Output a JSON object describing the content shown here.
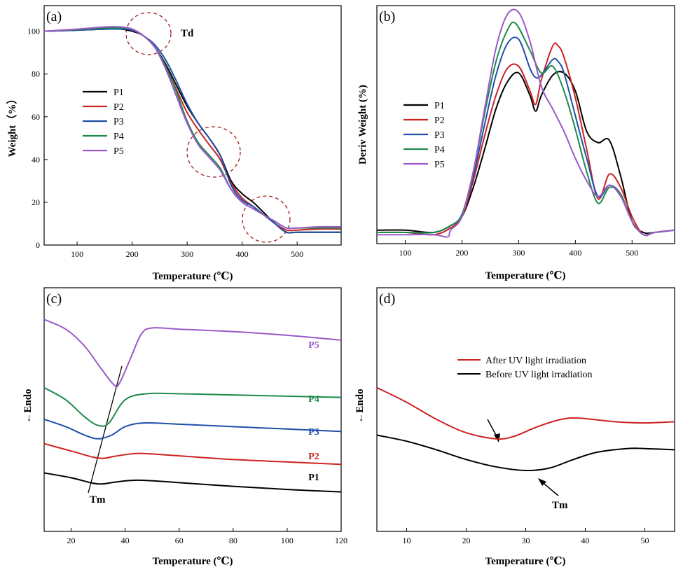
{
  "chart_data": [
    {
      "panel": "(a)",
      "type": "line",
      "xlabel": "Temperature (℃)",
      "ylabel": "Weight（%）",
      "xlim": [
        40,
        580
      ],
      "ylim": [
        0,
        112
      ],
      "xticks": [
        100,
        200,
        300,
        400,
        500
      ],
      "yticks": [
        0,
        20,
        40,
        60,
        80,
        100
      ],
      "legend_position": "center-left",
      "annotations": [
        "Td"
      ],
      "series": [
        {
          "name": "P1",
          "color": "#000000",
          "x": [
            40,
            100,
            150,
            180,
            200,
            220,
            240,
            260,
            280,
            300,
            320,
            340,
            360,
            380,
            400,
            420,
            440,
            460,
            480,
            500,
            540,
            580
          ],
          "y": [
            100,
            100.5,
            101,
            101,
            100,
            98,
            93,
            85,
            75,
            65,
            57,
            50,
            42,
            30,
            24,
            20,
            15,
            10,
            6,
            6,
            6,
            6
          ]
        },
        {
          "name": "P2",
          "color": "#cc2222",
          "x": [
            40,
            100,
            150,
            180,
            200,
            220,
            240,
            260,
            280,
            300,
            320,
            340,
            360,
            380,
            400,
            420,
            440,
            460,
            480,
            500,
            540,
            580
          ],
          "y": [
            100,
            100.8,
            101.5,
            101.5,
            100.5,
            98,
            93,
            84,
            73,
            62,
            54,
            47,
            40,
            29,
            22,
            18,
            14,
            10,
            7,
            7,
            7.5,
            7.5
          ]
        },
        {
          "name": "P3",
          "color": "#1f4fa8",
          "x": [
            40,
            100,
            150,
            180,
            200,
            220,
            240,
            260,
            280,
            300,
            320,
            340,
            360,
            380,
            400,
            420,
            440,
            460,
            480,
            500,
            540,
            580
          ],
          "y": [
            100,
            100.5,
            101,
            101,
            100.5,
            98,
            94,
            87,
            77,
            66,
            57,
            50,
            42,
            28,
            21,
            18,
            14,
            10,
            6,
            6,
            6,
            6
          ]
        },
        {
          "name": "P4",
          "color": "#1e8a4a",
          "x": [
            40,
            100,
            150,
            180,
            200,
            220,
            240,
            260,
            280,
            300,
            320,
            340,
            360,
            380,
            400,
            420,
            440,
            460,
            480,
            500,
            540,
            580
          ],
          "y": [
            100,
            100.8,
            101.5,
            101.5,
            101,
            98,
            93,
            84,
            72,
            58,
            48,
            42,
            36,
            26,
            20,
            17,
            14,
            11,
            8,
            8,
            8,
            8
          ]
        },
        {
          "name": "P5",
          "color": "#9b59c9",
          "x": [
            40,
            100,
            150,
            180,
            200,
            220,
            240,
            260,
            280,
            300,
            320,
            340,
            360,
            380,
            400,
            420,
            440,
            460,
            480,
            500,
            540,
            580
          ],
          "y": [
            100,
            101,
            102,
            102,
            101,
            98,
            93,
            83,
            70,
            57,
            47,
            41,
            35,
            26,
            20,
            17,
            14,
            11,
            8,
            8,
            8.5,
            8.5
          ]
        }
      ]
    },
    {
      "panel": "(b)",
      "type": "line",
      "xlabel": "Temperature (℃)",
      "ylabel": "Deriv Weight (%)",
      "xlim": [
        50,
        575
      ],
      "ylim": [
        0,
        10.6
      ],
      "xticks": [
        100,
        200,
        300,
        400,
        500
      ],
      "yticks": [],
      "legend_position": "center-left",
      "series": [
        {
          "name": "P1",
          "color": "#000000",
          "x": [
            50,
            100,
            150,
            180,
            200,
            220,
            240,
            260,
            280,
            300,
            320,
            330,
            340,
            360,
            380,
            400,
            420,
            440,
            460,
            480,
            500,
            520,
            540,
            575
          ],
          "y": [
            0.6,
            0.6,
            0.5,
            0.8,
            1.2,
            2.5,
            4.2,
            6.0,
            7.2,
            7.6,
            6.6,
            5.9,
            6.6,
            7.5,
            7.6,
            6.8,
            5.0,
            4.5,
            4.6,
            3.0,
            1.0,
            0.5,
            0.5,
            0.6
          ]
        },
        {
          "name": "P2",
          "color": "#cc2222",
          "x": [
            50,
            100,
            150,
            180,
            200,
            220,
            240,
            260,
            280,
            300,
            320,
            330,
            340,
            360,
            370,
            380,
            400,
            420,
            440,
            460,
            480,
            500,
            520,
            540,
            575
          ],
          "y": [
            0.5,
            0.5,
            0.4,
            0.7,
            1.2,
            2.8,
            4.8,
            6.6,
            7.8,
            7.9,
            6.8,
            6.2,
            7.3,
            8.8,
            8.8,
            8.3,
            6.5,
            4.2,
            2.0,
            3.1,
            2.5,
            1.2,
            0.4,
            0.5,
            0.6
          ]
        },
        {
          "name": "P3",
          "color": "#1f4fa8",
          "x": [
            50,
            100,
            150,
            180,
            200,
            220,
            240,
            260,
            280,
            300,
            320,
            330,
            340,
            360,
            370,
            380,
            400,
            420,
            440,
            460,
            480,
            500,
            520,
            540,
            575
          ],
          "y": [
            0.5,
            0.5,
            0.5,
            0.8,
            1.3,
            3.0,
            5.3,
            7.5,
            8.9,
            9.1,
            7.8,
            7.4,
            7.5,
            8.2,
            8.1,
            7.6,
            5.7,
            3.8,
            2.1,
            2.6,
            2.2,
            1.0,
            0.4,
            0.5,
            0.6
          ]
        },
        {
          "name": "P4",
          "color": "#1e8a4a",
          "x": [
            50,
            100,
            150,
            180,
            200,
            220,
            240,
            260,
            280,
            295,
            320,
            340,
            360,
            380,
            400,
            420,
            440,
            460,
            480,
            500,
            520,
            540,
            575
          ],
          "y": [
            0.5,
            0.5,
            0.5,
            0.8,
            1.3,
            3.2,
            5.8,
            8.1,
            9.5,
            9.8,
            8.6,
            7.6,
            7.9,
            6.8,
            5.1,
            3.2,
            1.8,
            2.5,
            2.2,
            1.0,
            0.4,
            0.5,
            0.6
          ]
        },
        {
          "name": "P5",
          "color": "#9b59c9",
          "x": [
            50,
            100,
            150,
            175,
            180,
            200,
            220,
            240,
            260,
            280,
            300,
            320,
            340,
            360,
            380,
            400,
            420,
            440,
            460,
            480,
            500,
            520,
            540,
            575
          ],
          "y": [
            0.4,
            0.4,
            0.4,
            0.3,
            0.6,
            1.2,
            3.2,
            6.0,
            8.7,
            10.2,
            10.3,
            9.0,
            7.0,
            6.0,
            5.0,
            3.8,
            2.8,
            2.1,
            2.6,
            2.1,
            1.0,
            0.4,
            0.5,
            0.6
          ]
        }
      ]
    },
    {
      "panel": "(c)",
      "type": "line",
      "xlabel": "Temperature (℃)",
      "ylabel": "←Endo",
      "xlim": [
        10,
        120
      ],
      "ylim": [
        0,
        10
      ],
      "xticks": [
        20,
        40,
        60,
        80,
        100,
        120
      ],
      "yticks": [],
      "annotations": [
        "Tm"
      ],
      "series": [
        {
          "name": "P1",
          "color": "#000000",
          "x": [
            10,
            20,
            28,
            32,
            36,
            45,
            60,
            80,
            100,
            120
          ],
          "y": [
            2.4,
            2.2,
            1.98,
            1.95,
            2.02,
            2.1,
            2.0,
            1.85,
            1.72,
            1.62
          ]
        },
        {
          "name": "P2",
          "color": "#cc2222",
          "x": [
            10,
            20,
            28,
            32,
            36,
            45,
            60,
            80,
            100,
            120
          ],
          "y": [
            3.6,
            3.3,
            3.05,
            3.0,
            3.08,
            3.2,
            3.1,
            2.95,
            2.85,
            2.75
          ]
        },
        {
          "name": "P3",
          "color": "#1f4fa8",
          "x": [
            10,
            18,
            25,
            30,
            35,
            40,
            47,
            60,
            80,
            100,
            120
          ],
          "y": [
            4.6,
            4.3,
            3.95,
            3.8,
            3.95,
            4.3,
            4.45,
            4.4,
            4.3,
            4.2,
            4.1
          ]
        },
        {
          "name": "P4",
          "color": "#1e8a4a",
          "x": [
            10,
            18,
            25,
            30,
            34,
            40,
            48,
            60,
            80,
            100,
            120
          ],
          "y": [
            5.9,
            5.4,
            4.7,
            4.35,
            4.45,
            5.4,
            5.65,
            5.65,
            5.6,
            5.55,
            5.5
          ]
        },
        {
          "name": "P5",
          "color": "#9b59c9",
          "x": [
            10,
            18,
            25,
            31,
            36,
            38,
            42,
            46,
            50,
            60,
            80,
            100,
            120
          ],
          "y": [
            8.7,
            8.3,
            7.6,
            6.7,
            6.0,
            6.1,
            7.1,
            8.1,
            8.35,
            8.3,
            8.2,
            8.05,
            7.85
          ]
        }
      ]
    },
    {
      "panel": "(d)",
      "type": "line",
      "xlabel": "Temperature (℃)",
      "ylabel": "←Endo",
      "xlim": [
        5,
        55
      ],
      "ylim": [
        0,
        10
      ],
      "xticks": [
        10,
        20,
        30,
        40,
        50
      ],
      "yticks": [],
      "legend_position": "top-right",
      "annotations": [
        "Tm"
      ],
      "series": [
        {
          "name": "After UV light irradiation",
          "color": "#cc2222",
          "x": [
            5,
            10,
            15,
            20,
            25,
            28,
            32,
            36,
            39,
            45,
            50,
            55
          ],
          "y": [
            5.9,
            5.3,
            4.6,
            4.05,
            3.8,
            3.9,
            4.3,
            4.6,
            4.65,
            4.5,
            4.45,
            4.5
          ]
        },
        {
          "name": "Before UV light irradiation",
          "color": "#000000",
          "x": [
            5,
            10,
            15,
            20,
            25,
            30,
            34,
            38,
            42,
            47,
            50,
            55
          ],
          "y": [
            3.95,
            3.7,
            3.35,
            2.95,
            2.65,
            2.5,
            2.6,
            2.95,
            3.25,
            3.4,
            3.4,
            3.35
          ]
        }
      ]
    }
  ]
}
